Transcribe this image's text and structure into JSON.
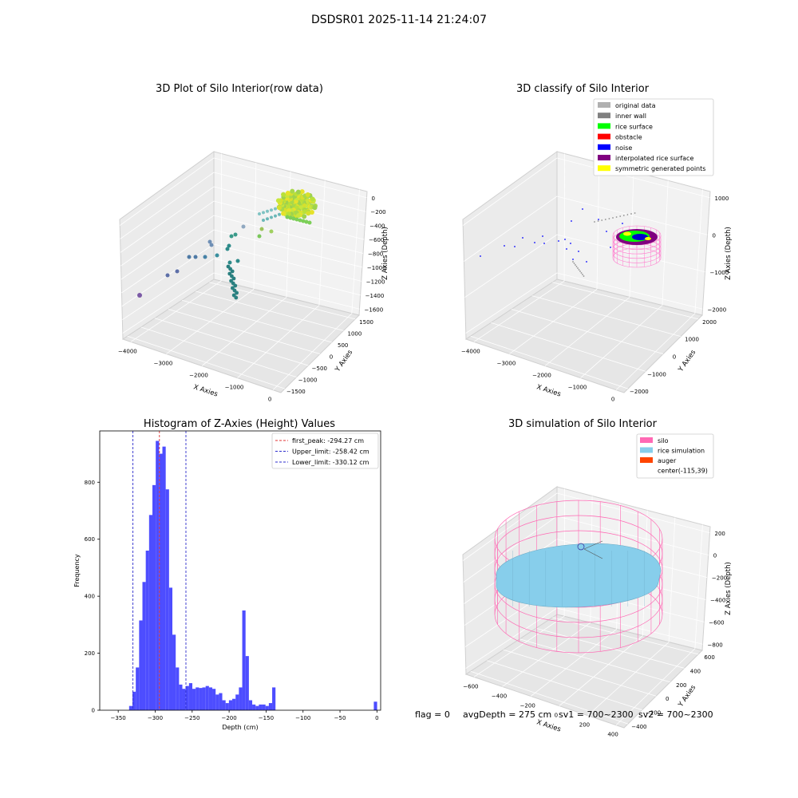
{
  "figure_title": "DSDSR01 2025-11-14 21:24:07",
  "footer": {
    "flag": "flag = 0",
    "avg_depth": "avgDepth = 275 cm",
    "sv1": "sv1 = 700~2300",
    "sv2": "sv2 = 700~2300"
  },
  "colors": {
    "hist_bar": "#4d4dff",
    "first_peak_line": "#e03030",
    "limit_line": "#2d2dcc",
    "silo": "#ff69b4",
    "rice_simulation": "#87ceeb",
    "auger": "#ff4500",
    "rice_surface": "#00ff00",
    "noise": "#0000ff",
    "interpolated": "#800080",
    "symmetric": "#ffff00"
  },
  "panels": {
    "raw": {
      "title": "3D Plot of Silo Interior(row data)",
      "xlabel": "X Axies",
      "ylabel": "Y Axies",
      "zlabel": "Z Axies (Depth)",
      "xticks": [
        "−4000",
        "−3000",
        "−2000",
        "−1000",
        "0"
      ],
      "yticks": [
        "−1500",
        "−1000",
        "−500",
        "0",
        "500",
        "1000",
        "1500"
      ],
      "zticks": [
        "0",
        "−200",
        "−400",
        "−600",
        "−800",
        "−1000",
        "−1200",
        "−1400",
        "−1600"
      ]
    },
    "classify": {
      "title": "3D classify of Silo Interior",
      "xlabel": "X Axies",
      "ylabel": "Y Axies",
      "zlabel": "Z Axies (Depth)",
      "xticks": [
        "−4000",
        "−3000",
        "−2000",
        "−1000",
        "0"
      ],
      "yticks": [
        "−2000",
        "−1000",
        "0",
        "1000",
        "2000"
      ],
      "zticks": [
        "1000",
        "0",
        "−1000",
        "−2000"
      ],
      "legend": [
        {
          "label": "original data",
          "color": "#b0b0b0"
        },
        {
          "label": "inner wall",
          "color": "#808080"
        },
        {
          "label": "rice surface",
          "color": "#00ff00"
        },
        {
          "label": "obstacle",
          "color": "#ff0000"
        },
        {
          "label": "noise",
          "color": "#0000ff"
        },
        {
          "label": "interpolated rice surface",
          "color": "#800080"
        },
        {
          "label": "symmetric generated points",
          "color": "#ffff00"
        }
      ]
    },
    "simulation": {
      "title": "3D simulation of Silo Interior",
      "xlabel": "X Axies",
      "ylabel": "Y Axies",
      "zlabel": "Z Axies (Depth)",
      "xticks": [
        "−600",
        "−400",
        "−200",
        "0",
        "200",
        "400"
      ],
      "yticks": [
        "−400",
        "−200",
        "0",
        "200",
        "400",
        "600"
      ],
      "zticks": [
        "200",
        "0",
        "−200",
        "−400",
        "−600",
        "−800"
      ],
      "legend": [
        {
          "label": "silo",
          "color": "#ff69b4"
        },
        {
          "label": "rice simulation",
          "color": "#87ceeb"
        },
        {
          "label": "auger",
          "color": "#ff4500"
        },
        {
          "label": "center(-115,39)",
          "color": ""
        }
      ]
    }
  },
  "chart_data": {
    "type": "bar",
    "title": "Histogram of Z-Axies (Height) Values",
    "xlabel": "Depth (cm)",
    "ylabel": "Frequency",
    "xlim": [
      -375,
      5
    ],
    "ylim": [
      0,
      980
    ],
    "xticks": [
      -350,
      -300,
      -250,
      -200,
      -150,
      -100,
      -50,
      0
    ],
    "yticks": [
      0,
      200,
      400,
      600,
      800
    ],
    "bin_width": 4.5,
    "bins": [
      {
        "x": -333,
        "count": 15
      },
      {
        "x": -328.5,
        "count": 65
      },
      {
        "x": -324,
        "count": 150
      },
      {
        "x": -319.5,
        "count": 315
      },
      {
        "x": -315,
        "count": 450
      },
      {
        "x": -310.5,
        "count": 560
      },
      {
        "x": -306,
        "count": 685
      },
      {
        "x": -301.5,
        "count": 790
      },
      {
        "x": -297,
        "count": 945
      },
      {
        "x": -292.5,
        "count": 900
      },
      {
        "x": -288,
        "count": 925
      },
      {
        "x": -283.5,
        "count": 775
      },
      {
        "x": -279,
        "count": 430
      },
      {
        "x": -274.5,
        "count": 265
      },
      {
        "x": -270,
        "count": 150
      },
      {
        "x": -265.5,
        "count": 90
      },
      {
        "x": -261,
        "count": 75
      },
      {
        "x": -256.5,
        "count": 85
      },
      {
        "x": -252,
        "count": 95
      },
      {
        "x": -247.5,
        "count": 75
      },
      {
        "x": -243,
        "count": 80
      },
      {
        "x": -238.5,
        "count": 78
      },
      {
        "x": -234,
        "count": 80
      },
      {
        "x": -229.5,
        "count": 85
      },
      {
        "x": -225,
        "count": 80
      },
      {
        "x": -220.5,
        "count": 75
      },
      {
        "x": -216,
        "count": 55
      },
      {
        "x": -211.5,
        "count": 60
      },
      {
        "x": -207,
        "count": 35
      },
      {
        "x": -202.5,
        "count": 25
      },
      {
        "x": -198,
        "count": 35
      },
      {
        "x": -193.5,
        "count": 40
      },
      {
        "x": -189,
        "count": 55
      },
      {
        "x": -184.5,
        "count": 80
      },
      {
        "x": -180,
        "count": 350
      },
      {
        "x": -175.5,
        "count": 190
      },
      {
        "x": -171,
        "count": 35
      },
      {
        "x": -166.5,
        "count": 20
      },
      {
        "x": -162,
        "count": 15
      },
      {
        "x": -157.5,
        "count": 20
      },
      {
        "x": -153,
        "count": 20
      },
      {
        "x": -148.5,
        "count": 15
      },
      {
        "x": -144,
        "count": 25
      },
      {
        "x": -139.5,
        "count": 80
      },
      {
        "x": -2,
        "count": 30
      }
    ],
    "vlines": [
      {
        "x": -294.27,
        "label": "first_peak: -294.27 cm",
        "kind": "peak"
      },
      {
        "x": -258.42,
        "label": "Upper_limit: -258.42 cm",
        "kind": "limit"
      },
      {
        "x": -330.12,
        "label": "Lower_limit: -330.12 cm",
        "kind": "limit"
      }
    ],
    "legend_position": "upper right"
  }
}
